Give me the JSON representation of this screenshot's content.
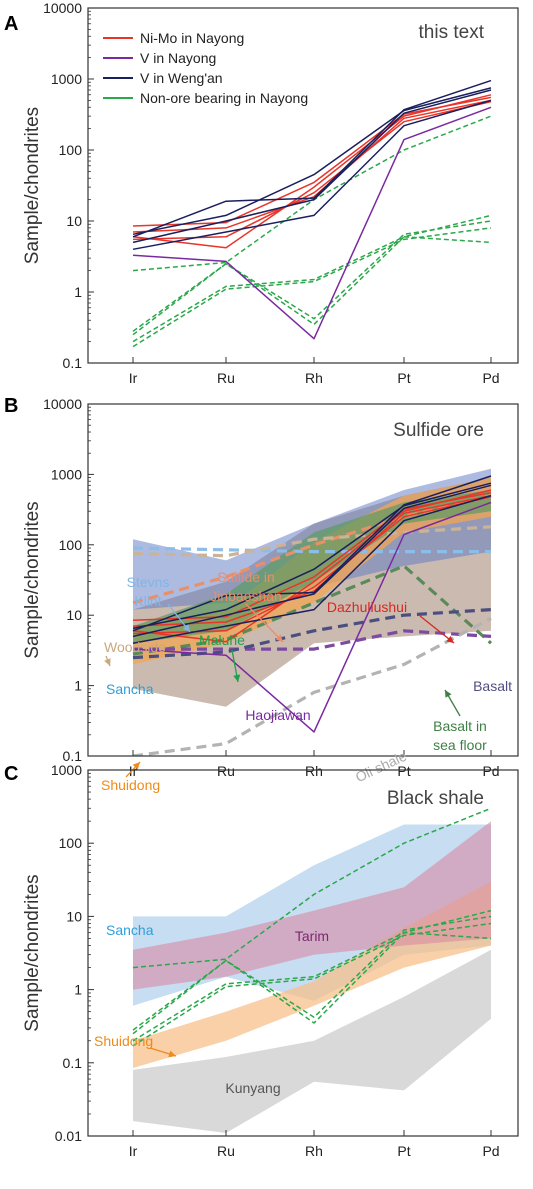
{
  "chart_data": [
    {
      "type": "line",
      "panel_label": "A",
      "title": "this text",
      "ylabel": "Sample/chondrites",
      "categories": [
        "Ir",
        "Ru",
        "Rh",
        "Pt",
        "Pd"
      ],
      "yscale": "log",
      "ylim": [
        0.1,
        10000
      ],
      "yticks": [
        "0.1",
        "1",
        "10",
        "100",
        "1000",
        "10000"
      ],
      "legend": [
        {
          "name": "Ni-Mo in Nayong",
          "color": "#e8352a",
          "dash": false
        },
        {
          "name": "V in Nayong",
          "color": "#7a2aa0",
          "dash": false
        },
        {
          "name": "V in Weng'an",
          "color": "#1a1f5e",
          "dash": false
        },
        {
          "name": "Non-ore bearing in Nayong",
          "color": "#2aa84a",
          "dash": false
        }
      ],
      "series": [
        {
          "group": "Ni-Mo in Nayong",
          "color": "#e8352a",
          "values": [
            6,
            4.2,
            30,
            300,
            600
          ]
        },
        {
          "group": "Ni-Mo in Nayong",
          "color": "#e8352a",
          "values": [
            8.5,
            9.5,
            35,
            320,
            550
          ]
        },
        {
          "group": "Ni-Mo in Nayong",
          "color": "#e8352a",
          "values": [
            7,
            8,
            22,
            280,
            500
          ]
        },
        {
          "group": "Ni-Mo in Nayong",
          "color": "#e8352a",
          "values": [
            5.5,
            6,
            25,
            250,
            480
          ]
        },
        {
          "group": "V in Nayong",
          "color": "#7a2aa0",
          "values": [
            3.3,
            2.7,
            0.22,
            140,
            400
          ]
        },
        {
          "group": "V in Weng'an",
          "color": "#1a1f5e",
          "values": [
            6,
            19,
            21,
            370,
            950
          ]
        },
        {
          "group": "V in Weng'an",
          "color": "#1a1f5e",
          "values": [
            4,
            7,
            12,
            220,
            500
          ]
        },
        {
          "group": "V in Weng'an",
          "color": "#1a1f5e",
          "values": [
            6.5,
            12,
            45,
            360,
            750
          ]
        },
        {
          "group": "V in Weng'an",
          "color": "#1a1f5e",
          "values": [
            5,
            10,
            20,
            330,
            700
          ]
        },
        {
          "group": "Non-ore bearing in Nayong",
          "color": "#2aa84a",
          "dash": true,
          "values": [
            2,
            2.6,
            20,
            100,
            300
          ]
        },
        {
          "group": "Non-ore bearing in Nayong",
          "color": "#2aa84a",
          "dash": true,
          "values": [
            0.25,
            2.5,
            0.35,
            6,
            12
          ]
        },
        {
          "group": "Non-ore bearing in Nayong",
          "color": "#2aa84a",
          "dash": true,
          "values": [
            0.17,
            1.1,
            1.4,
            5.5,
            8
          ]
        },
        {
          "group": "Non-ore bearing in Nayong",
          "color": "#2aa84a",
          "dash": true,
          "values": [
            0.28,
            2.5,
            0.42,
            6.5,
            10
          ]
        },
        {
          "group": "Non-ore bearing in Nayong",
          "color": "#2aa84a",
          "dash": true,
          "values": [
            0.2,
            1.2,
            1.5,
            6,
            5
          ]
        }
      ]
    },
    {
      "type": "line",
      "panel_label": "B",
      "title": "Sulfide ore",
      "ylabel": "Sample/chondrites",
      "categories": [
        "Ir",
        "Ru",
        "Rh",
        "Pt",
        "Pd"
      ],
      "yscale": "log",
      "ylim": [
        0.1,
        10000
      ],
      "yticks": [
        "0.1",
        "1",
        "10",
        "100",
        "1000",
        "10000"
      ],
      "bands": [
        {
          "color": "#b9a394",
          "opacity": 0.75,
          "low": [
            0.9,
            0.5,
            4,
            5,
            6
          ],
          "high": [
            12,
            30,
            200,
            500,
            900
          ]
        },
        {
          "color": "#5c77c4",
          "opacity": 0.5,
          "low": [
            12,
            15,
            25,
            50,
            80
          ],
          "high": [
            120,
            60,
            200,
            600,
            1200
          ]
        },
        {
          "color": "#f3a552",
          "opacity": 0.75,
          "low": [
            2,
            4,
            15,
            150,
            250
          ],
          "high": [
            7,
            12,
            110,
            500,
            900
          ]
        },
        {
          "color": "#5b9b62",
          "opacity": 0.7,
          "low": [
            4,
            6,
            30,
            200,
            300
          ],
          "high": [
            7,
            20,
            150,
            400,
            600
          ]
        }
      ],
      "series": [
        {
          "color": "#e8352a",
          "values": [
            6,
            4.2,
            30,
            300,
            600
          ]
        },
        {
          "color": "#e8352a",
          "values": [
            8.5,
            9.5,
            35,
            320,
            550
          ]
        },
        {
          "color": "#e8352a",
          "values": [
            7,
            8,
            22,
            280,
            500
          ]
        },
        {
          "color": "#e8352a",
          "values": [
            5.5,
            6,
            25,
            250,
            480
          ]
        },
        {
          "color": "#7a2aa0",
          "values": [
            3.3,
            2.7,
            0.22,
            140,
            400
          ]
        },
        {
          "color": "#1a1f5e",
          "values": [
            6,
            19,
            21,
            370,
            950
          ]
        },
        {
          "color": "#1a1f5e",
          "values": [
            4,
            7,
            12,
            220,
            500
          ]
        },
        {
          "color": "#1a1f5e",
          "values": [
            6.5,
            12,
            45,
            360,
            750
          ]
        },
        {
          "color": "#1a1f5e",
          "values": [
            5,
            10,
            20,
            330,
            700
          ]
        },
        {
          "color": "#8bbde8",
          "dash": true,
          "thick": true,
          "values": [
            90,
            85,
            80,
            80,
            80
          ]
        },
        {
          "color": "#e8906a",
          "dash": true,
          "thick": true,
          "values": [
            15,
            35,
            100,
            250,
            500
          ]
        },
        {
          "color": "#cbb398",
          "dash": true,
          "thick": true,
          "values": [
            75,
            70,
            120,
            150,
            180
          ]
        },
        {
          "color": "#5a8a5a",
          "dash": true,
          "thick": true,
          "values": [
            2.8,
            4.5,
            15,
            50,
            4
          ]
        },
        {
          "color": "#7c4aa0",
          "dash": true,
          "thick": true,
          "values": [
            3.3,
            3.3,
            3.3,
            6,
            5
          ]
        },
        {
          "color": "#4a4f80",
          "dash": true,
          "thick": true,
          "values": [
            2.5,
            3,
            6,
            10,
            12
          ]
        },
        {
          "color": "#b3b3b3",
          "dash": true,
          "thick": true,
          "values": [
            0.1,
            0.15,
            0.8,
            2,
            9
          ]
        }
      ],
      "annotations": [
        {
          "text": "Sulfide in",
          "text2": "Jinbaoshan",
          "color": "#f08a6a"
        },
        {
          "text": "Dazhuliushui",
          "color": "#d52a22"
        },
        {
          "text": "Stevns",
          "text2": "Klint",
          "color": "#7fb6e4"
        },
        {
          "text": "Woodside",
          "color": "#c9a782"
        },
        {
          "text": "Maluhe",
          "color": "#1fa04e"
        },
        {
          "text": "Sancha",
          "color": "#2e9ed8"
        },
        {
          "text": "Basalt",
          "color": "#4f4e82"
        },
        {
          "text": "Haojiawan",
          "color": "#7a2aa0"
        },
        {
          "text": "Basalt in",
          "text2": "sea floor",
          "color": "#3f7f45"
        },
        {
          "text": "Oli shale",
          "color": "#aaaaaa"
        },
        {
          "text": "Shuidong",
          "color": "#f08a1a"
        }
      ]
    },
    {
      "type": "line",
      "panel_label": "C",
      "title": "Black shale",
      "ylabel": "Sample/chondrites",
      "categories": [
        "Ir",
        "Ru",
        "Rh",
        "Pt",
        "Pd"
      ],
      "yscale": "log",
      "ylim": [
        0.01,
        1000
      ],
      "yticks": [
        "0.01",
        "0.1",
        "1",
        "10",
        "100",
        "1000"
      ],
      "bands": [
        {
          "color": "#d9d9d9",
          "opacity": 1,
          "low": [
            0.016,
            0.011,
            0.055,
            0.042,
            0.4
          ],
          "high": [
            0.08,
            0.12,
            0.2,
            0.8,
            3.5
          ]
        },
        {
          "color": "#a7cbeb",
          "opacity": 0.65,
          "low": [
            0.6,
            1.5,
            0.7,
            3,
            4
          ],
          "high": [
            10,
            10,
            50,
            180,
            180
          ]
        },
        {
          "color": "#f7c08b",
          "opacity": 0.75,
          "low": [
            0.085,
            0.2,
            0.6,
            2,
            4
          ],
          "high": [
            0.2,
            0.5,
            1.3,
            7,
            30
          ]
        },
        {
          "color": "#d98aa4",
          "opacity": 0.6,
          "low": [
            1,
            1.5,
            3,
            4,
            5
          ],
          "high": [
            3.5,
            6,
            12,
            25,
            200
          ]
        }
      ],
      "series": [
        {
          "color": "#2aa84a",
          "dash": true,
          "values": [
            2,
            2.6,
            20,
            100,
            300
          ]
        },
        {
          "color": "#2aa84a",
          "dash": true,
          "values": [
            0.25,
            2.5,
            0.35,
            6,
            12
          ]
        },
        {
          "color": "#2aa84a",
          "dash": true,
          "values": [
            0.17,
            1.1,
            1.4,
            5.5,
            8
          ]
        },
        {
          "color": "#2aa84a",
          "dash": true,
          "values": [
            0.28,
            2.5,
            0.42,
            6.5,
            10
          ]
        },
        {
          "color": "#2aa84a",
          "dash": true,
          "values": [
            0.2,
            1.2,
            1.5,
            6,
            5
          ]
        }
      ],
      "annotations": [
        {
          "text": "Sancha",
          "color": "#2e9ed8"
        },
        {
          "text": "Tarim",
          "color": "#7a2a70"
        },
        {
          "text": "Shuidong",
          "color": "#f08a1a"
        },
        {
          "text": "Kunyang",
          "color": "#555555"
        }
      ]
    }
  ]
}
